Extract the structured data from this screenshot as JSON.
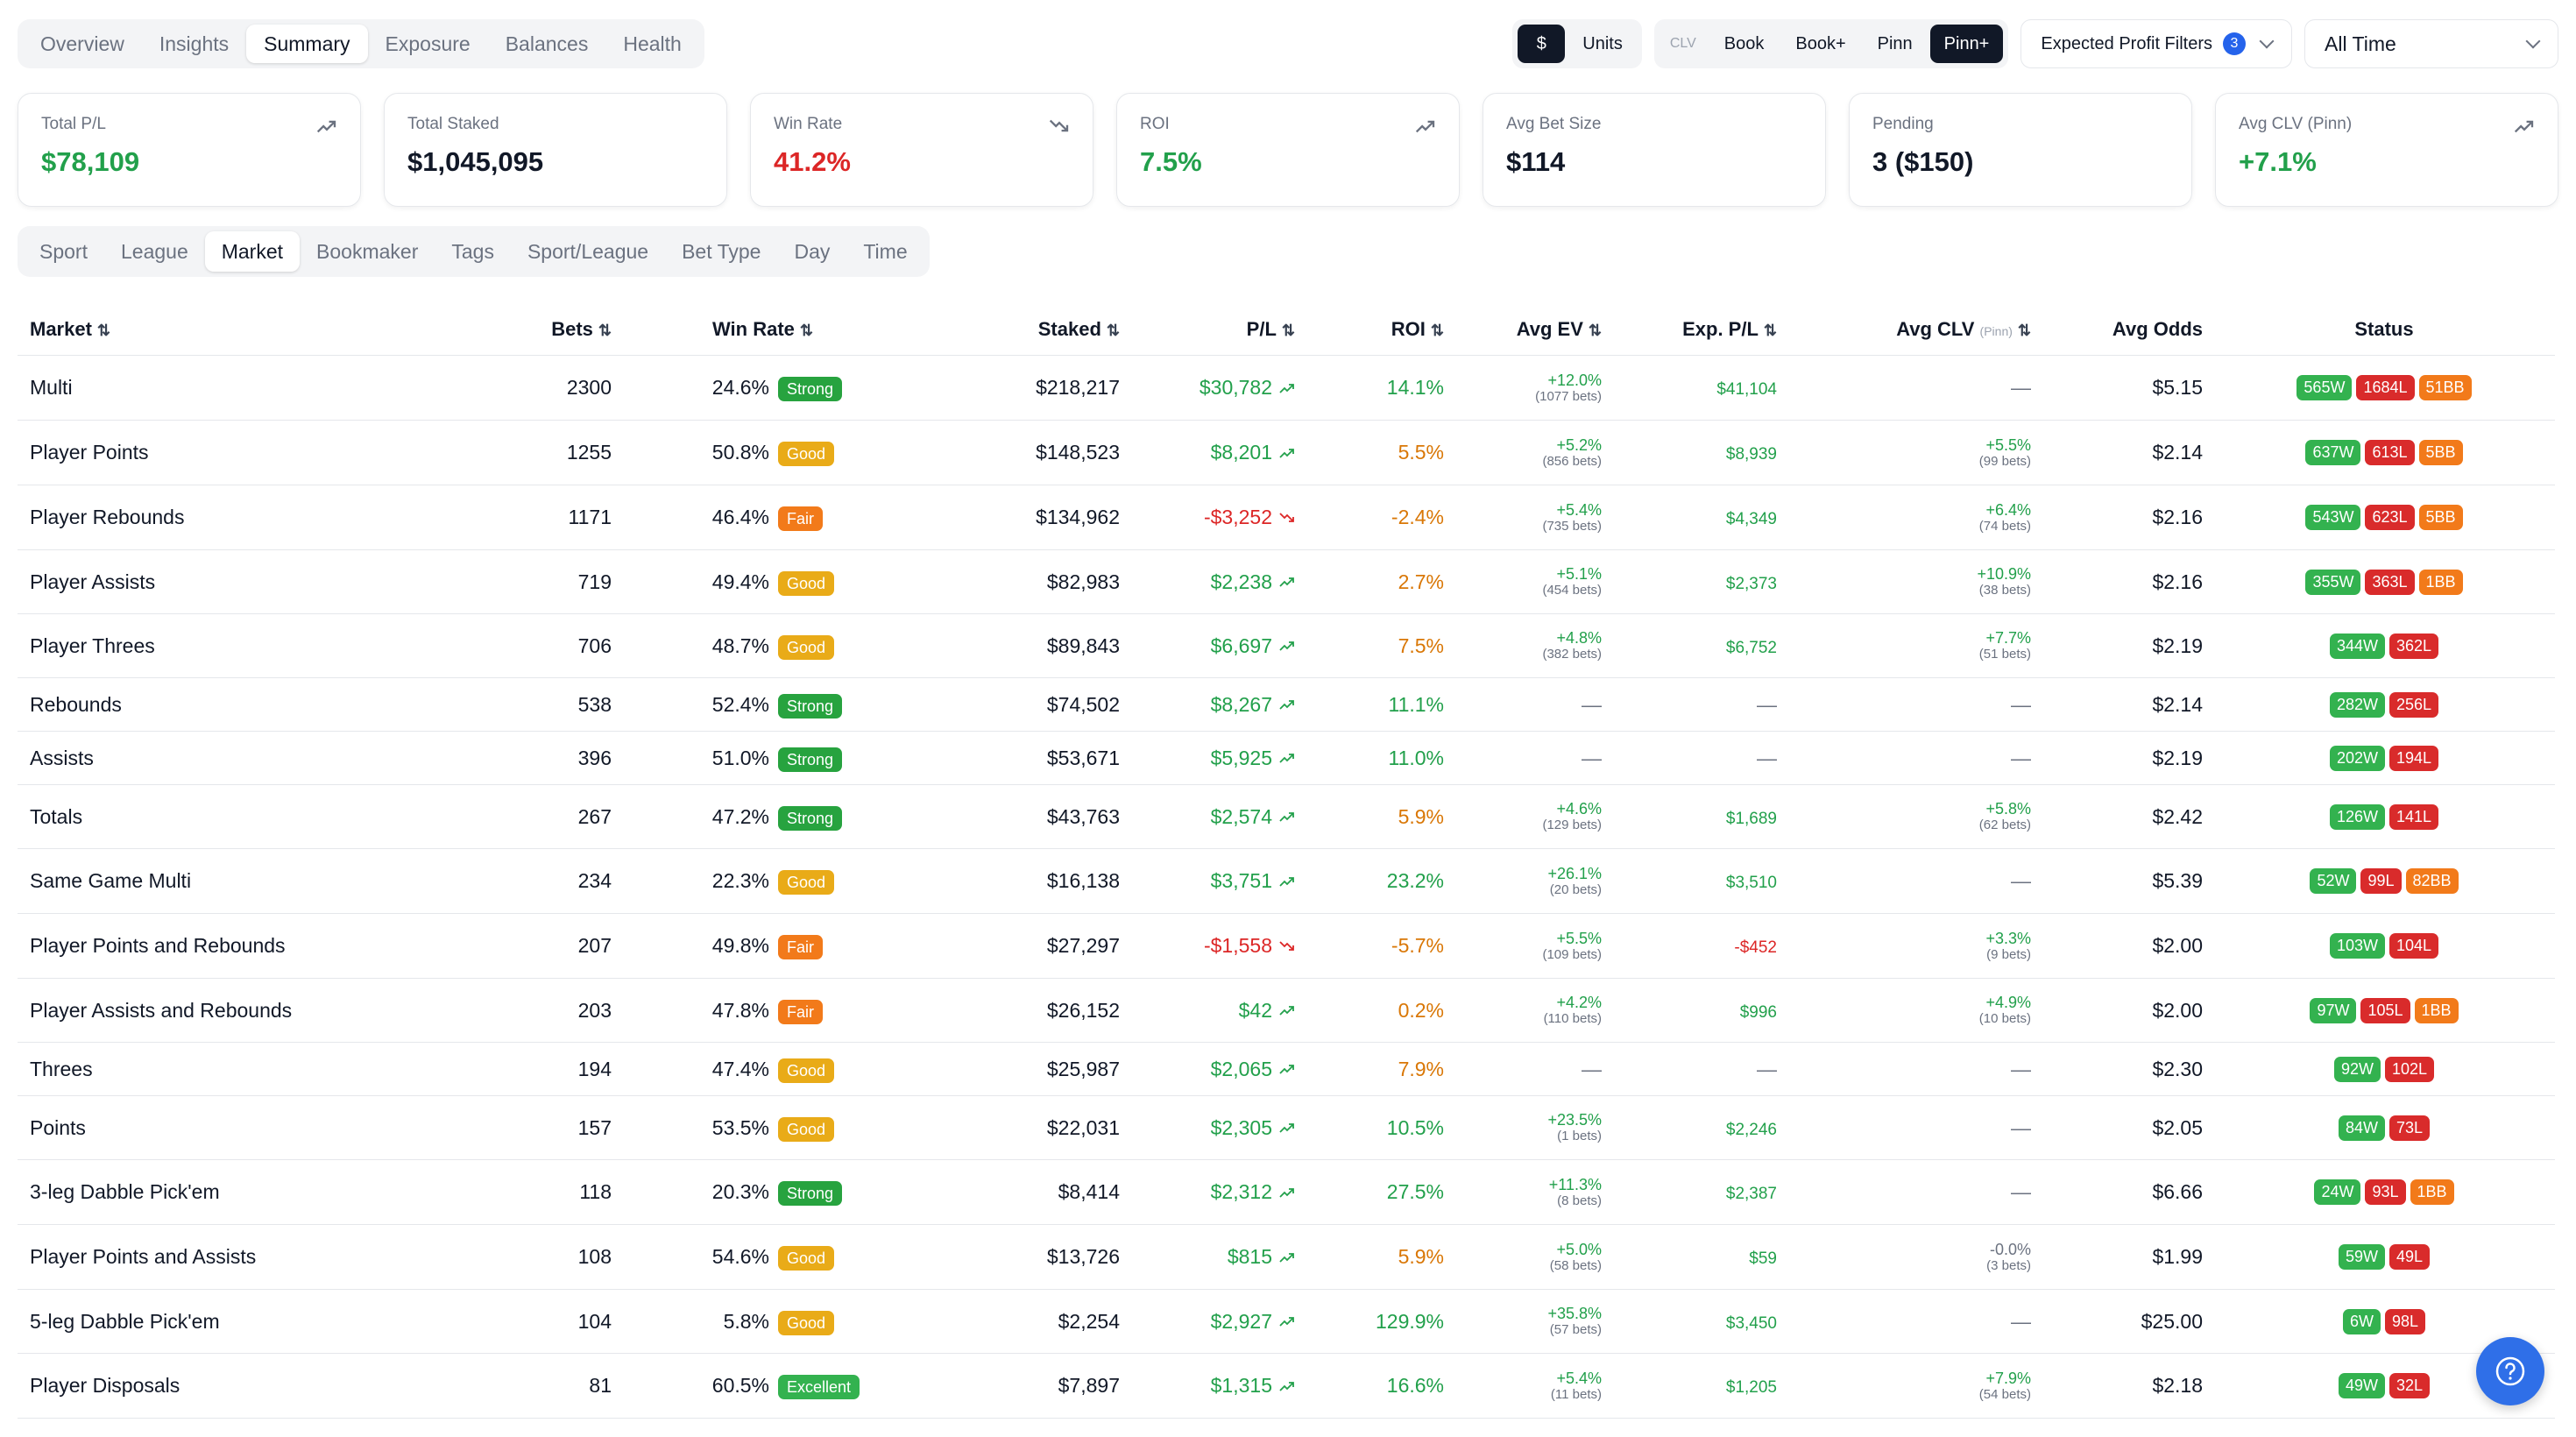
{
  "nav": {
    "tabs": [
      "Overview",
      "Insights",
      "Summary",
      "Exposure",
      "Balances",
      "Health"
    ],
    "active": 2
  },
  "display": {
    "currency": "$",
    "units": "Units"
  },
  "clv": {
    "label": "CLV",
    "options": [
      "Book",
      "Book+",
      "Pinn",
      "Pinn+"
    ],
    "active": 3
  },
  "filters": {
    "label": "Expected Profit Filters",
    "count": "3"
  },
  "timerange": {
    "value": "All Time"
  },
  "cards": [
    {
      "label": "Total P/L",
      "value": "$78,109",
      "color": "green",
      "trend": "up"
    },
    {
      "label": "Total Staked",
      "value": "$1,045,095",
      "color": "",
      "trend": ""
    },
    {
      "label": "Win Rate",
      "value": "41.2%",
      "color": "red",
      "trend": "down"
    },
    {
      "label": "ROI",
      "value": "7.5%",
      "color": "green",
      "trend": "up"
    },
    {
      "label": "Avg Bet Size",
      "value": "$114",
      "color": "",
      "trend": ""
    },
    {
      "label": "Pending",
      "value": "3 ($150)",
      "color": "",
      "trend": ""
    },
    {
      "label": "Avg CLV (Pinn)",
      "value": "+7.1%",
      "color": "green",
      "trend": "up"
    }
  ],
  "subtabs": {
    "items": [
      "Sport",
      "League",
      "Market",
      "Bookmaker",
      "Tags",
      "Sport/League",
      "Bet Type",
      "Day",
      "Time"
    ],
    "active": 2
  },
  "table": {
    "headers": {
      "market": "Market",
      "bets": "Bets",
      "win": "Win Rate",
      "staked": "Staked",
      "pl": "P/L",
      "roi": "ROI",
      "ev": "Avg EV",
      "exp": "Exp. P/L",
      "clv": "Avg CLV",
      "clv_sub": "(Pinn)",
      "odds": "Avg Odds",
      "status": "Status"
    },
    "sort_icon": "⇅",
    "rows": [
      {
        "market": "Multi",
        "bets": "2300",
        "win": "24.6%",
        "tag": "Strong",
        "staked": "$218,217",
        "pl": "$30,782",
        "pl_dir": "up",
        "roi": "14.1%",
        "roi_c": "green",
        "ev": "+12.0%",
        "ev_sub": "(1077 bets)",
        "exp": "$41,104",
        "exp_c": "green",
        "clv": "",
        "clv_sub": "",
        "odds": "$5.15",
        "w": "565W",
        "l": "1684L",
        "bb": "51BB",
        "h": 74
      },
      {
        "market": "Player Points",
        "bets": "1255",
        "win": "50.8%",
        "tag": "Good",
        "staked": "$148,523",
        "pl": "$8,201",
        "pl_dir": "up",
        "roi": "5.5%",
        "roi_c": "orange",
        "ev": "+5.2%",
        "ev_sub": "(856 bets)",
        "exp": "$8,939",
        "exp_c": "green",
        "clv": "+5.5%",
        "clv_sub": "(99 bets)",
        "odds": "$2.14",
        "w": "637W",
        "l": "613L",
        "bb": "5BB",
        "h": 74
      },
      {
        "market": "Player Rebounds",
        "bets": "1171",
        "win": "46.4%",
        "tag": "Fair",
        "staked": "$134,962",
        "pl": "-$3,252",
        "pl_dir": "down",
        "roi": "-2.4%",
        "roi_c": "orange",
        "ev": "+5.4%",
        "ev_sub": "(735 bets)",
        "exp": "$4,349",
        "exp_c": "green",
        "clv": "+6.4%",
        "clv_sub": "(74 bets)",
        "odds": "$2.16",
        "w": "543W",
        "l": "623L",
        "bb": "5BB",
        "h": 74
      },
      {
        "market": "Player Assists",
        "bets": "719",
        "win": "49.4%",
        "tag": "Good",
        "staked": "$82,983",
        "pl": "$2,238",
        "pl_dir": "up",
        "roi": "2.7%",
        "roi_c": "orange",
        "ev": "+5.1%",
        "ev_sub": "(454 bets)",
        "exp": "$2,373",
        "exp_c": "green",
        "clv": "+10.9%",
        "clv_sub": "(38 bets)",
        "odds": "$2.16",
        "w": "355W",
        "l": "363L",
        "bb": "1BB",
        "h": 73
      },
      {
        "market": "Player Threes",
        "bets": "706",
        "win": "48.7%",
        "tag": "Good",
        "staked": "$89,843",
        "pl": "$6,697",
        "pl_dir": "up",
        "roi": "7.5%",
        "roi_c": "orange",
        "ev": "+4.8%",
        "ev_sub": "(382 bets)",
        "exp": "$6,752",
        "exp_c": "green",
        "clv": "+7.7%",
        "clv_sub": "(51 bets)",
        "odds": "$2.19",
        "w": "344W",
        "l": "362L",
        "bb": "",
        "h": 73
      },
      {
        "market": "Rebounds",
        "bets": "538",
        "win": "52.4%",
        "tag": "Strong",
        "staked": "$74,502",
        "pl": "$8,267",
        "pl_dir": "up",
        "roi": "11.1%",
        "roi_c": "green",
        "ev": "",
        "ev_sub": "",
        "exp": "",
        "exp_c": "",
        "clv": "",
        "clv_sub": "",
        "odds": "$2.14",
        "w": "282W",
        "l": "256L",
        "bb": "",
        "h": 61
      },
      {
        "market": "Assists",
        "bets": "396",
        "win": "51.0%",
        "tag": "Strong",
        "staked": "$53,671",
        "pl": "$5,925",
        "pl_dir": "up",
        "roi": "11.0%",
        "roi_c": "green",
        "ev": "",
        "ev_sub": "",
        "exp": "",
        "exp_c": "",
        "clv": "",
        "clv_sub": "",
        "odds": "$2.19",
        "w": "202W",
        "l": "194L",
        "bb": "",
        "h": 61
      },
      {
        "market": "Totals",
        "bets": "267",
        "win": "47.2%",
        "tag": "Strong",
        "staked": "$43,763",
        "pl": "$2,574",
        "pl_dir": "up",
        "roi": "5.9%",
        "roi_c": "orange",
        "ev": "+4.6%",
        "ev_sub": "(129 bets)",
        "exp": "$1,689",
        "exp_c": "green",
        "clv": "+5.8%",
        "clv_sub": "(62 bets)",
        "odds": "$2.42",
        "w": "126W",
        "l": "141L",
        "bb": "",
        "h": 73
      },
      {
        "market": "Same Game Multi",
        "bets": "234",
        "win": "22.3%",
        "tag": "Good",
        "staked": "$16,138",
        "pl": "$3,751",
        "pl_dir": "up",
        "roi": "23.2%",
        "roi_c": "green",
        "ev": "+26.1%",
        "ev_sub": "(20 bets)",
        "exp": "$3,510",
        "exp_c": "green",
        "clv": "",
        "clv_sub": "",
        "odds": "$5.39",
        "w": "52W",
        "l": "99L",
        "bb": "82BB",
        "h": 74
      },
      {
        "market": "Player Points and Rebounds",
        "bets": "207",
        "win": "49.8%",
        "tag": "Fair",
        "staked": "$27,297",
        "pl": "-$1,558",
        "pl_dir": "down",
        "roi": "-5.7%",
        "roi_c": "orange",
        "ev": "+5.5%",
        "ev_sub": "(109 bets)",
        "exp": "-$452",
        "exp_c": "red",
        "clv": "+3.3%",
        "clv_sub": "(9 bets)",
        "odds": "$2.00",
        "w": "103W",
        "l": "104L",
        "bb": "",
        "h": 74
      },
      {
        "market": "Player Assists and Rebounds",
        "bets": "203",
        "win": "47.8%",
        "tag": "Fair",
        "staked": "$26,152",
        "pl": "$42",
        "pl_dir": "up",
        "roi": "0.2%",
        "roi_c": "orange",
        "ev": "+4.2%",
        "ev_sub": "(110 bets)",
        "exp": "$996",
        "exp_c": "green",
        "clv": "+4.9%",
        "clv_sub": "(10 bets)",
        "odds": "$2.00",
        "w": "97W",
        "l": "105L",
        "bb": "1BB",
        "h": 73
      },
      {
        "market": "Threes",
        "bets": "194",
        "win": "47.4%",
        "tag": "Good",
        "staked": "$25,987",
        "pl": "$2,065",
        "pl_dir": "up",
        "roi": "7.9%",
        "roi_c": "orange",
        "ev": "",
        "ev_sub": "",
        "exp": "",
        "exp_c": "",
        "clv": "",
        "clv_sub": "",
        "odds": "$2.30",
        "w": "92W",
        "l": "102L",
        "bb": "",
        "h": 61
      },
      {
        "market": "Points",
        "bets": "157",
        "win": "53.5%",
        "tag": "Good",
        "staked": "$22,031",
        "pl": "$2,305",
        "pl_dir": "up",
        "roi": "10.5%",
        "roi_c": "green",
        "ev": "+23.5%",
        "ev_sub": "(1 bets)",
        "exp": "$2,246",
        "exp_c": "green",
        "clv": "",
        "clv_sub": "",
        "odds": "$2.05",
        "w": "84W",
        "l": "73L",
        "bb": "",
        "h": 73
      },
      {
        "market": "3-leg Dabble Pick'em",
        "bets": "118",
        "win": "20.3%",
        "tag": "Strong",
        "staked": "$8,414",
        "pl": "$2,312",
        "pl_dir": "up",
        "roi": "27.5%",
        "roi_c": "green",
        "ev": "+11.3%",
        "ev_sub": "(8 bets)",
        "exp": "$2,387",
        "exp_c": "green",
        "clv": "",
        "clv_sub": "",
        "odds": "$6.66",
        "w": "24W",
        "l": "93L",
        "bb": "1BB",
        "h": 74
      },
      {
        "market": "Player Points and Assists",
        "bets": "108",
        "win": "54.6%",
        "tag": "Good",
        "staked": "$13,726",
        "pl": "$815",
        "pl_dir": "up",
        "roi": "5.9%",
        "roi_c": "orange",
        "ev": "+5.0%",
        "ev_sub": "(58 bets)",
        "exp": "$59",
        "exp_c": "green",
        "clv": "-0.0%",
        "clv_sub": "(3 bets)",
        "odds": "$1.99",
        "w": "59W",
        "l": "49L",
        "bb": "",
        "h": 74
      },
      {
        "market": "5-leg Dabble Pick'em",
        "bets": "104",
        "win": "5.8%",
        "tag": "Good",
        "staked": "$2,254",
        "pl": "$2,927",
        "pl_dir": "up",
        "roi": "129.9%",
        "roi_c": "green",
        "ev": "+35.8%",
        "ev_sub": "(57 bets)",
        "exp": "$3,450",
        "exp_c": "green",
        "clv": "",
        "clv_sub": "",
        "odds": "$25.00",
        "w": "6W",
        "l": "98L",
        "bb": "",
        "h": 73
      },
      {
        "market": "Player Disposals",
        "bets": "81",
        "win": "60.5%",
        "tag": "Excellent",
        "staked": "$7,897",
        "pl": "$1,315",
        "pl_dir": "up",
        "roi": "16.6%",
        "roi_c": "green",
        "ev": "+5.4%",
        "ev_sub": "(11 bets)",
        "exp": "$1,205",
        "exp_c": "green",
        "clv": "+7.9%",
        "clv_sub": "(54 bets)",
        "odds": "$2.18",
        "w": "49W",
        "l": "32L",
        "bb": "",
        "h": 74
      }
    ]
  },
  "colors": {
    "Strong": "#27a33f",
    "Good": "#e9ab18",
    "Fair": "#f27a1a",
    "Excellent": "#33b24f"
  },
  "dash": "—"
}
